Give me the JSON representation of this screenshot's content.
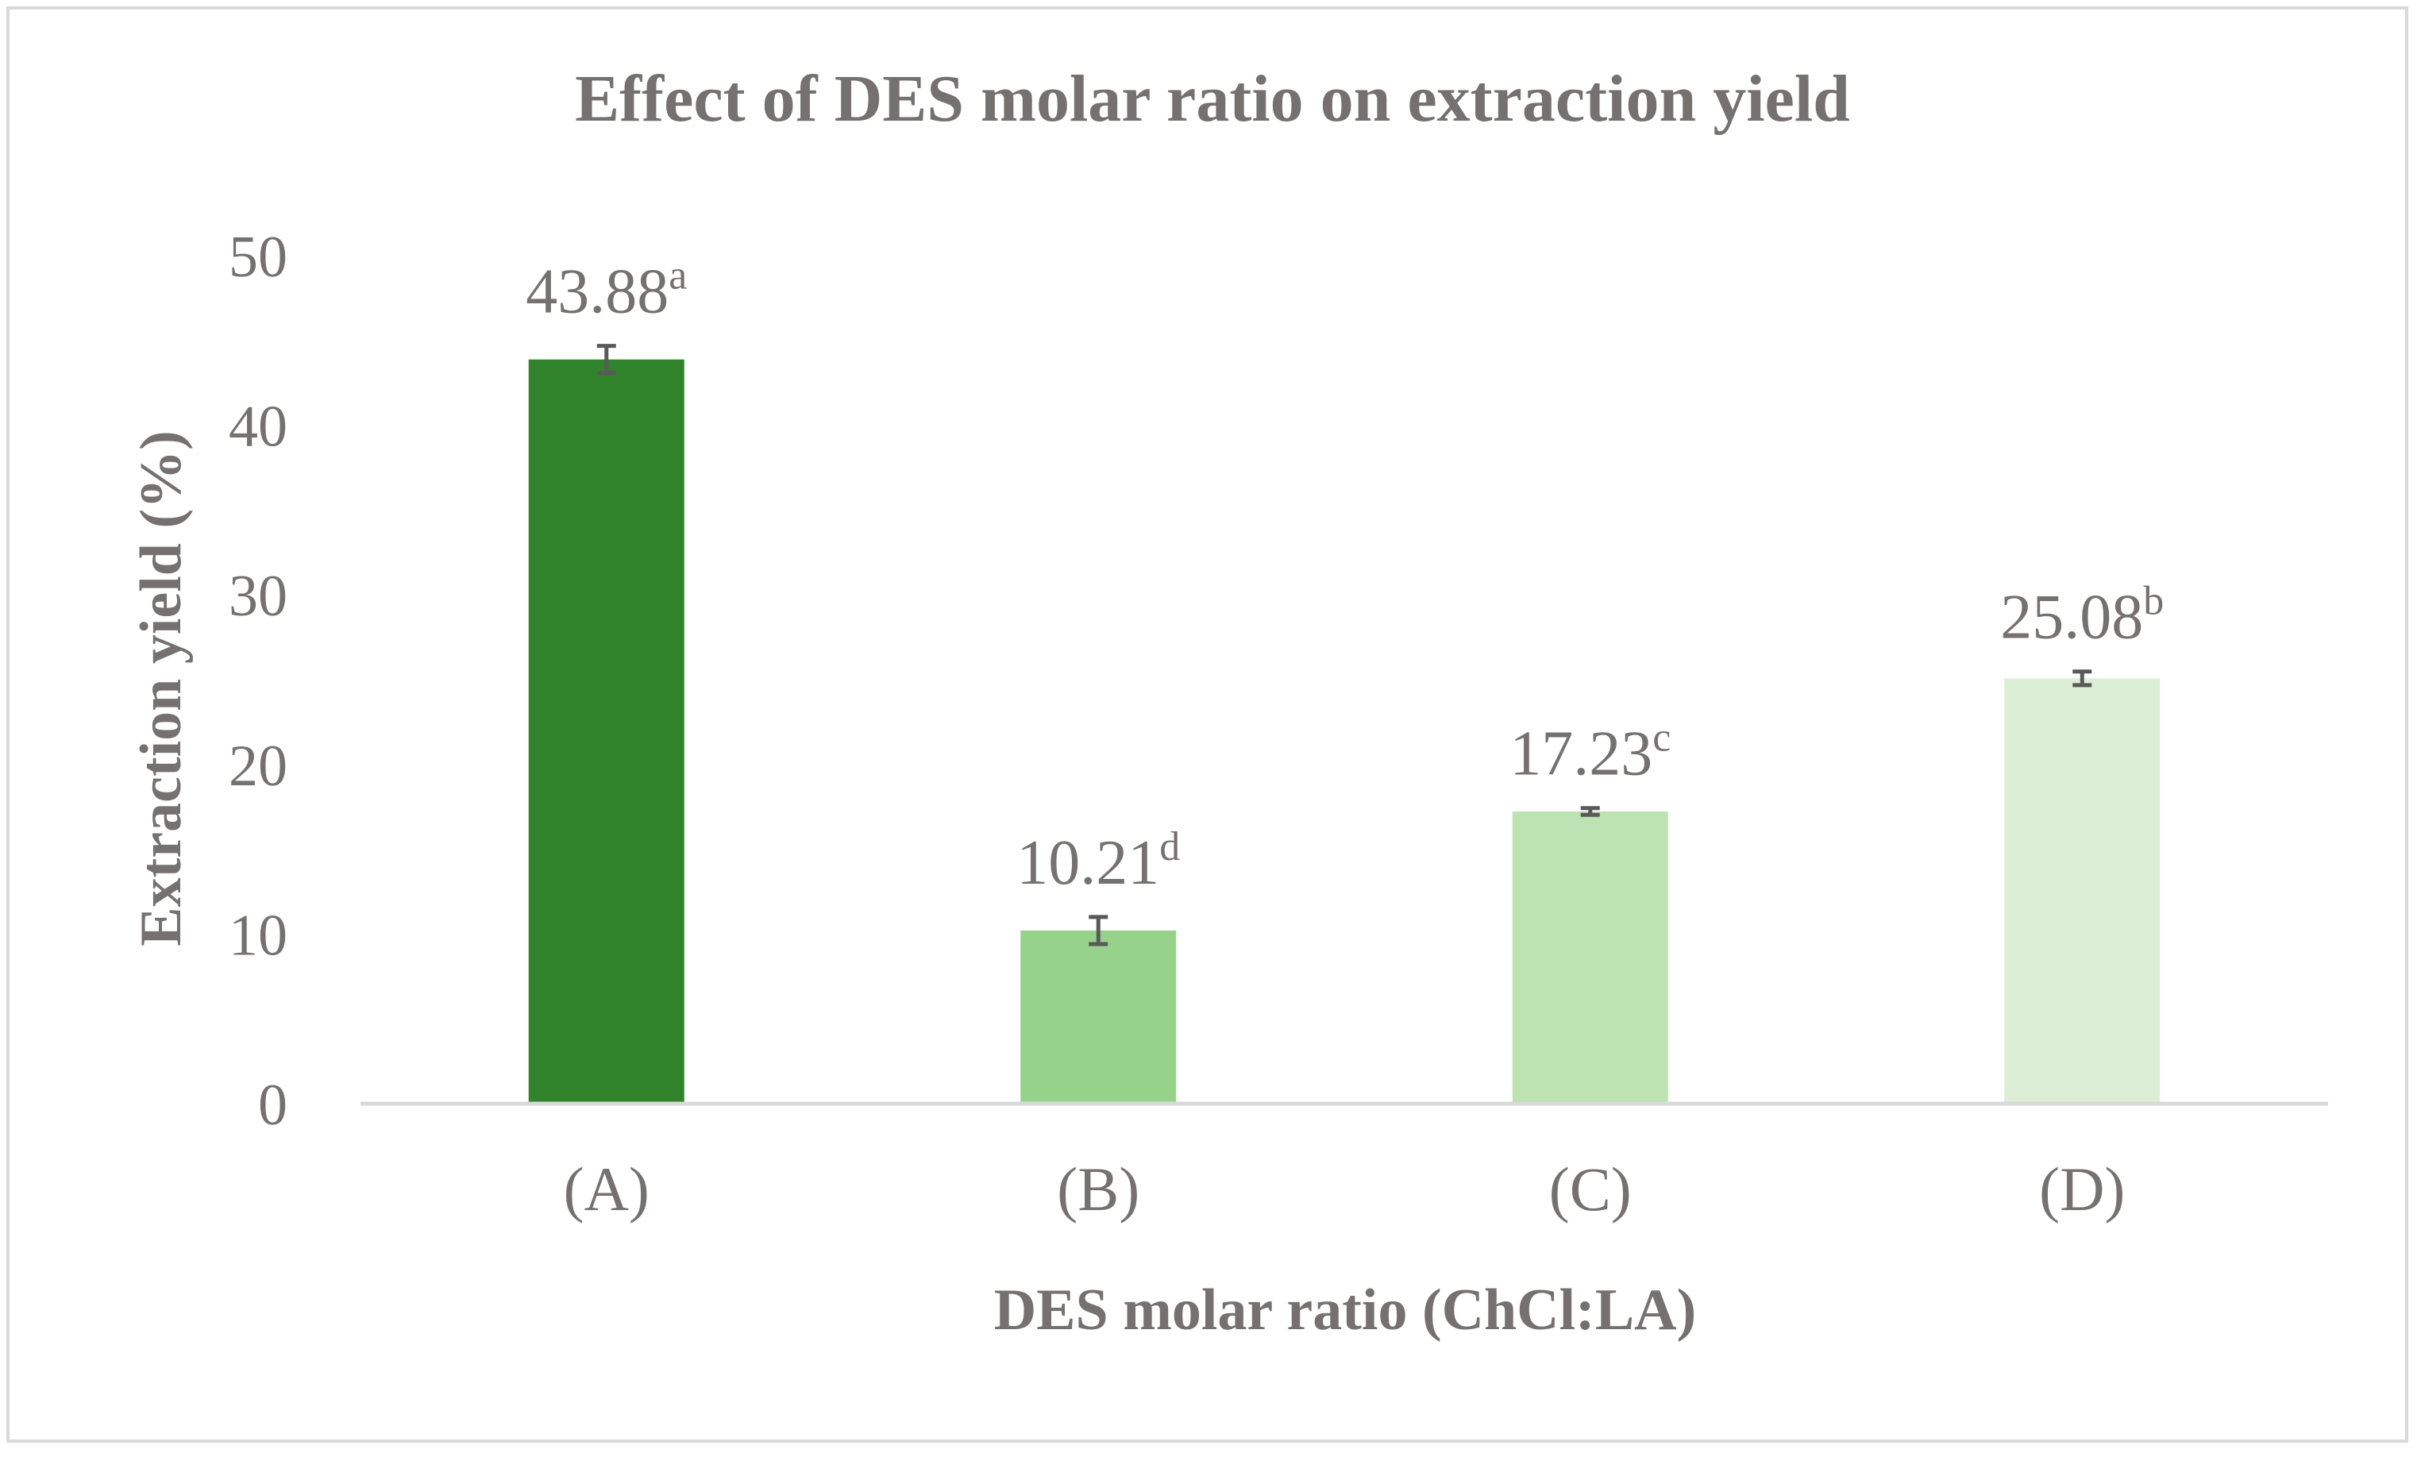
{
  "chart_data": {
    "type": "bar",
    "title": "Effect of DES molar ratio on extraction yield",
    "xlabel": "DES molar ratio (ChCl:LA)",
    "ylabel": "Extraction yield (%)",
    "ylim": [
      0,
      50
    ],
    "yticks": [
      0,
      10,
      20,
      30,
      40,
      50
    ],
    "grid": false,
    "legend": "none",
    "categories": [
      "(A)",
      "(B)",
      "(C)",
      "(D)"
    ],
    "values": [
      43.88,
      10.21,
      17.23,
      25.08
    ],
    "errors": [
      0.8,
      0.8,
      0.2,
      0.4
    ],
    "value_labels": [
      "43.88",
      "10.21",
      "17.23",
      "25.08"
    ],
    "significance_letters": [
      "a",
      "d",
      "c",
      "b"
    ],
    "bar_colors": [
      "#31832b",
      "#97d28a",
      "#bde3b3",
      "#dcefd6"
    ],
    "text_color": "#767171",
    "axis_color": "#d9d9d9",
    "error_bar_color": "#595959"
  }
}
